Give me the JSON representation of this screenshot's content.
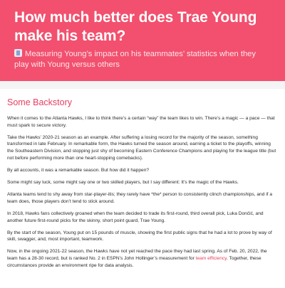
{
  "header": {
    "title": "How much better does Trae Young make his team?",
    "icon": "chart-icon",
    "subtitle": "Measuring Young’s impact on his teammates’ statistics when they play with Young versus others",
    "bg_color": "#f2506e"
  },
  "article": {
    "section_title": "Some Backstory",
    "accent_color": "#e4405f",
    "paragraphs": [
      "When it comes to the Atlanta Hawks, I like to think there’s a certain “way” the team likes to win. There’s a magic — a pace — that must spark to secure victory.",
      "Take the Hawks’ 2020-21 season as an example. After suffering a losing record for the majority of the season, something transformed in late February. In remarkable form, the Hawks turned the season around, earning a ticket to the playoffs, winning the Southeastern Division, and stopping just shy of becoming Eastern Conference Champions and playing for the league title (but not before performing more than one heart-stopping comebacks).",
      "By all accounts, it was a remarkable season. But how did it happen?",
      "Some might say luck, some might say one or two skilled players, but I say different: It’s the magic of the Hawks.",
      "Atlanta teams tend to shy away from star-player-itis; they rarely have *the* person to consistently clinch championships, and if a team does, those players don’t tend to stick around.",
      "In 2018, Hawks fans collectively groaned when the team decided to trade its first-round, third overall pick, Luka Dončić, and another future first-round picks for the skinny, short point guard, Trae Young.",
      "By the start of the season, Young put on 15 pounds of muscle, showing the first public signs that he had a lot to prove by way of skill, swagger, and, most important, teamwork."
    ],
    "last_paragraph": {
      "before": "Now, in the ongoing 2021-22 season, the Hawks have not yet reached the pace they had last spring. As of Feb. 20, 2022, the team has a 28-30 record, but is ranked No. 2 in ESPN’s John Hollinger’s measurement for ",
      "link": "team efficiency",
      "after": ". Together, these circumstances provide an environment ripe for data analysis."
    }
  }
}
